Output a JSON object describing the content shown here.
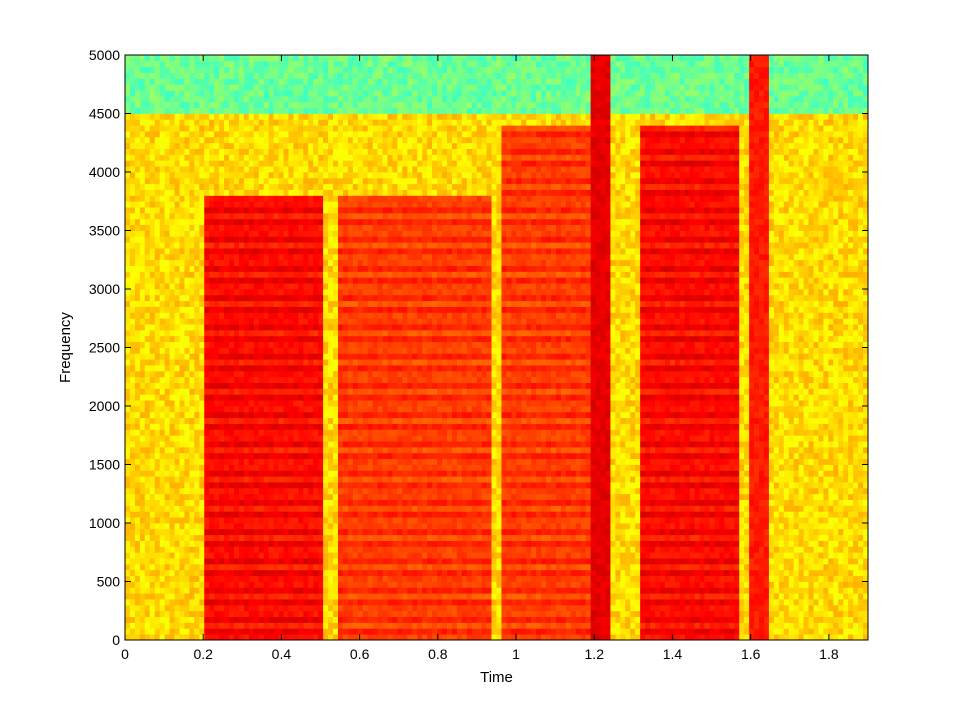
{
  "chart_data": {
    "type": "heatmap",
    "title": "",
    "xlabel": "Time",
    "ylabel": "Frequency",
    "xlim": [
      0,
      1.9
    ],
    "ylim": [
      0,
      5000
    ],
    "x_ticks": [
      {
        "value": 0,
        "label": "0"
      },
      {
        "value": 0.2,
        "label": "0.2"
      },
      {
        "value": 0.4,
        "label": "0.4"
      },
      {
        "value": 0.6,
        "label": "0.6"
      },
      {
        "value": 0.8,
        "label": "0.8"
      },
      {
        "value": 1,
        "label": "1"
      },
      {
        "value": 1.2,
        "label": "1.2"
      },
      {
        "value": 1.4,
        "label": "1.4"
      },
      {
        "value": 1.6,
        "label": "1.6"
      },
      {
        "value": 1.8,
        "label": "1.8"
      }
    ],
    "y_ticks": [
      {
        "value": 0,
        "label": "0"
      },
      {
        "value": 500,
        "label": "500"
      },
      {
        "value": 1000,
        "label": "1000"
      },
      {
        "value": 1500,
        "label": "1500"
      },
      {
        "value": 2000,
        "label": "2000"
      },
      {
        "value": 2500,
        "label": "2500"
      },
      {
        "value": 3000,
        "label": "3000"
      },
      {
        "value": 3500,
        "label": "3500"
      },
      {
        "value": 4000,
        "label": "4000"
      },
      {
        "value": 4500,
        "label": "4500"
      },
      {
        "value": 5000,
        "label": "5000"
      }
    ],
    "grid": false,
    "legend": "none",
    "colormap": "jet",
    "spectral_rolloff_hz": 4500,
    "segments": [
      {
        "kind": "voiced",
        "t_start": 0.21,
        "t_end": 0.49,
        "f_end": 3800,
        "energy": 0.9
      },
      {
        "kind": "voiced",
        "t_start": 0.56,
        "t_end": 0.93,
        "f_end": 3800,
        "energy": 0.85
      },
      {
        "kind": "voiced",
        "t_start": 0.98,
        "t_end": 1.19,
        "f_end": 4400,
        "energy": 0.85
      },
      {
        "kind": "voiced",
        "t_start": 1.33,
        "t_end": 1.56,
        "f_end": 4400,
        "energy": 0.9
      },
      {
        "kind": "burst",
        "t_start": 1.2,
        "t_end": 1.225,
        "f_end": 5000,
        "energy": 0.9
      },
      {
        "kind": "burst",
        "t_start": 1.605,
        "t_end": 1.63,
        "f_end": 5000,
        "energy": 0.85
      }
    ]
  }
}
